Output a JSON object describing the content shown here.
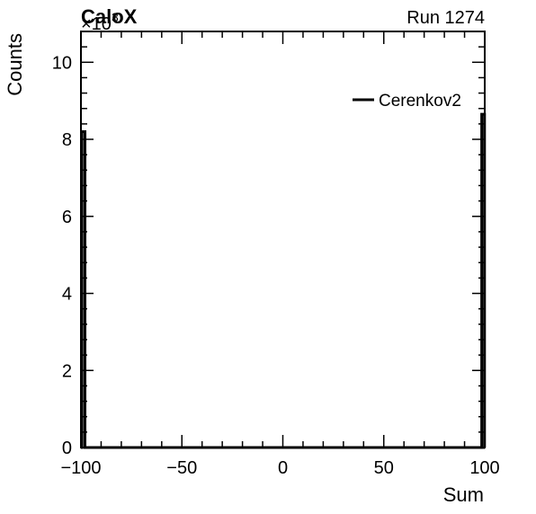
{
  "header": {
    "left_title": "CaloX",
    "right_title": "Run 1274"
  },
  "chart_data": {
    "type": "histogram",
    "xlabel": "Sum",
    "ylabel": "Counts",
    "y_multiplier_label": "×10",
    "y_multiplier_exponent": "3",
    "xlim": [
      -100,
      100
    ],
    "ylim": [
      0,
      10800
    ],
    "x_ticks": [
      -100,
      -50,
      0,
      50,
      100
    ],
    "x_tick_labels": [
      "−100",
      "−50",
      "0",
      "50",
      "100"
    ],
    "y_ticks": [
      0,
      2000,
      4000,
      6000,
      8000,
      10000
    ],
    "y_tick_labels": [
      "0",
      "2",
      "4",
      "6",
      "8",
      "10"
    ],
    "legend_position": "top-right",
    "series": [
      {
        "name": "Cerenkov2",
        "color": "#000000",
        "bins": [
          {
            "x0": -99.5,
            "x1": -98.0,
            "value": 8200
          },
          {
            "x0": 98.5,
            "x1": 99.9,
            "value": 8650
          }
        ]
      }
    ]
  }
}
